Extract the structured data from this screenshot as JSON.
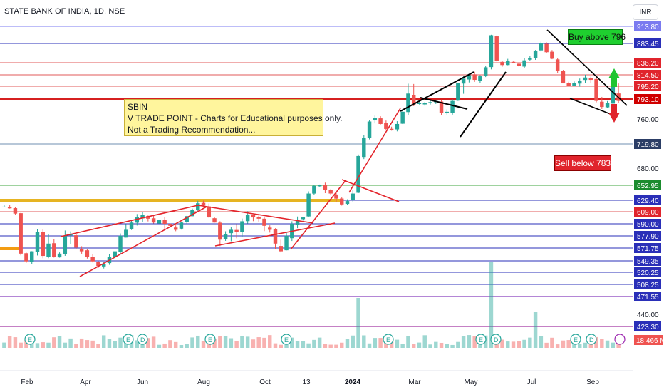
{
  "header": {
    "title": "STATE BANK OF INDIA, 1D, NSE",
    "currency": "INR"
  },
  "note": {
    "lines": [
      "SBIN",
      "V TRADE POINT - Charts for Educational purposes only.",
      "Not a Trading Recommendation..."
    ]
  },
  "labels": {
    "buy": "Buy above 796",
    "sell": "Sell below 783"
  },
  "colors": {
    "up": "#26a69a",
    "down": "#ef5350",
    "trendline": "#e3242b",
    "buy_bg": "#1fcf2f",
    "sell_bg": "#e0242c",
    "note_bg": "#fff59d"
  },
  "chart_data": {
    "type": "candlestick",
    "symbol": "SBIN",
    "timeframe": "1D",
    "exchange": "NSE",
    "x_ticks": [
      "Feb",
      "Apr",
      "Jun",
      "Aug",
      "Oct",
      "13",
      "2024",
      "Mar",
      "May",
      "Jul",
      "Sep"
    ],
    "y_range": [
      430,
      920
    ],
    "price_ticks": [
      "760.00",
      "680.00",
      "440.00"
    ],
    "levels": [
      {
        "price": "913.80",
        "color": "#7b7bf0",
        "label_bg": "#7b7bf0"
      },
      {
        "price": "883.45",
        "color": "#2a2fb8",
        "label_bg": "#2a2fb8"
      },
      {
        "price": "836.20",
        "color": "#e05a5a",
        "label_bg": "#e0242c"
      },
      {
        "price": "814.50",
        "color": "#e05a5a",
        "label_bg": "#e0242c"
      },
      {
        "price": "795.20",
        "color": "#e05a5a",
        "label_bg": "#e0242c"
      },
      {
        "price": "793.10",
        "color": "#d00000",
        "label_bg": "#d00000"
      },
      {
        "price": "719.80",
        "color": "#6f8fb0",
        "label_bg": "#2c3e66"
      },
      {
        "price": "652.95",
        "color": "#3da63d",
        "label_bg": "#1b8c2e"
      },
      {
        "price": "629.40",
        "color": "#2a2fb8",
        "label_bg": "#2a2fb8"
      },
      {
        "price": "609.00",
        "color": "#e05a5a",
        "label_bg": "#e0242c"
      },
      {
        "price": "590.00",
        "color": "#2a2fb8",
        "label_bg": "#2a2fb8"
      },
      {
        "price": "577.90",
        "color": "#2a2fb8",
        "label_bg": "#2a2fb8"
      },
      {
        "price": "571.75",
        "color": "#2a2fb8",
        "label_bg": "#2a2fb8"
      },
      {
        "price": "549.35",
        "color": "#2a2fb8",
        "label_bg": "#2a2fb8"
      },
      {
        "price": "520.25",
        "color": "#2a2fb8",
        "label_bg": "#2a2fb8"
      },
      {
        "price": "508.25",
        "color": "#2a2fb8",
        "label_bg": "#2a2fb8"
      },
      {
        "price": "471.55",
        "color": "#6a0dad",
        "label_bg": "#2a2fb8"
      },
      {
        "price": "423.30",
        "color": "#8b008b",
        "label_bg": "#2a2fb8"
      }
    ],
    "volume_label": "18.466 M",
    "approx_closes": [
      618,
      615,
      606,
      562,
      548,
      566,
      582,
      558,
      574,
      556,
      562,
      578,
      580,
      572,
      566,
      556,
      548,
      536,
      542,
      556,
      566,
      578,
      584,
      592,
      600,
      604,
      598,
      592,
      596,
      590,
      588,
      584,
      592,
      602,
      612,
      624,
      620,
      600,
      592,
      576,
      580,
      584,
      582,
      594,
      604,
      600,
      598,
      588,
      584,
      574,
      566,
      578,
      590,
      596,
      600,
      640,
      652,
      654,
      646,
      640,
      632,
      622,
      628,
      640,
      700,
      730,
      756,
      762,
      752,
      744,
      742,
      752,
      772,
      794,
      784,
      786,
      786,
      788,
      790,
      770,
      772,
      790,
      800,
      808,
      814,
      806,
      812,
      828,
      898,
      840,
      832,
      840,
      836,
      830,
      842,
      848,
      866,
      884,
      862,
      846,
      822,
      800,
      796,
      800,
      804,
      810,
      806,
      790,
      780,
      786,
      796,
      790
    ]
  }
}
